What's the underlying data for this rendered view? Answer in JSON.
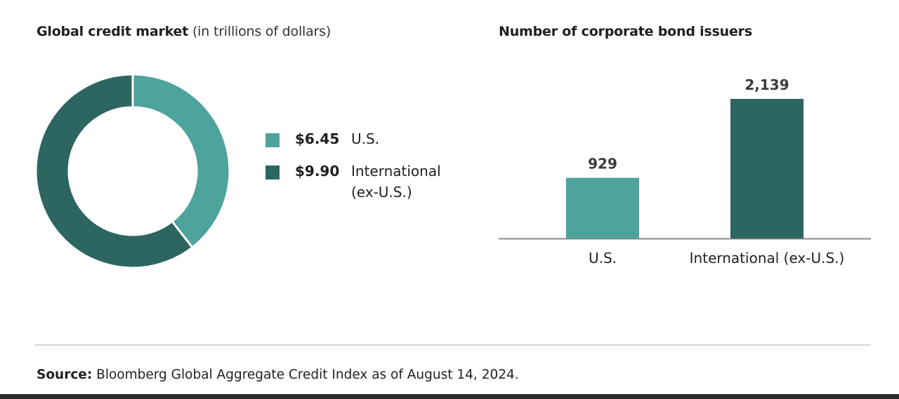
{
  "colors": {
    "us": "#4ea39d",
    "international": "#2d6661",
    "axis": "#888888",
    "divider": "#d6d6d6"
  },
  "donut": {
    "title_bold": "Global credit market",
    "title_rest": "(in trillions of dollars)"
  },
  "bars": {
    "title": "Number of corporate bond issuers"
  },
  "source": {
    "label": "Source:",
    "text": "Bloomberg Global Aggregate Credit Index as of August 14, 2024."
  },
  "chart_data": [
    {
      "type": "pie",
      "title": "Global credit market (in trillions of dollars)",
      "style": "donut",
      "slices": [
        {
          "label": "U.S.",
          "display_value": "$6.45",
          "value": 6.45,
          "color": "#4ea39d"
        },
        {
          "label": "International (ex-U.S.)",
          "label_lines": [
            "International",
            "(ex-U.S.)"
          ],
          "display_value": "$9.90",
          "value": 9.9,
          "color": "#2d6661"
        }
      ],
      "legend_position": "right"
    },
    {
      "type": "bar",
      "title": "Number of corporate bond issuers",
      "categories": [
        "U.S.",
        "International (ex-U.S.)"
      ],
      "values": [
        929,
        2139
      ],
      "value_labels": [
        "929",
        "2,139"
      ],
      "colors": [
        "#4ea39d",
        "#2d6661"
      ],
      "ylim": [
        0,
        2139
      ],
      "grid": false,
      "axes_visible": false
    }
  ]
}
